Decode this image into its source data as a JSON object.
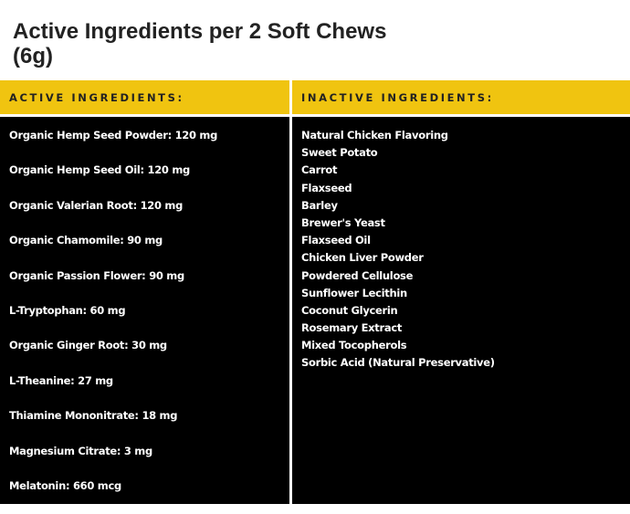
{
  "title": "Active Ingredients per 2 Soft Chews (6g)",
  "colors": {
    "header": "#f0c410",
    "body": "#000000"
  },
  "active": {
    "header": "ACTIVE INGREDIENTS:",
    "items": [
      "Organic Hemp Seed Powder: 120 mg",
      "Organic Hemp Seed Oil: 120 mg",
      "Organic Valerian Root: 120 mg",
      "Organic Chamomile: 90 mg",
      "Organic Passion Flower: 90 mg",
      "L-Tryptophan: 60 mg",
      "Organic Ginger Root: 30 mg",
      "L-Theanine: 27 mg",
      "Thiamine Mononitrate: 18 mg",
      "Magnesium Citrate: 3 mg",
      "Melatonin: 660 mcg"
    ]
  },
  "inactive": {
    "header": "INACTIVE INGREDIENTS:",
    "items": [
      "Natural Chicken Flavoring",
      "Sweet Potato",
      "Carrot",
      "Flaxseed",
      "Barley",
      "Brewer's Yeast",
      "Flaxseed Oil",
      "Chicken Liver Powder",
      "Powdered Cellulose",
      "Sunflower Lecithin",
      "Coconut Glycerin",
      "Rosemary Extract",
      "Mixed Tocopherols",
      "Sorbic Acid (Natural Preservative)"
    ]
  }
}
